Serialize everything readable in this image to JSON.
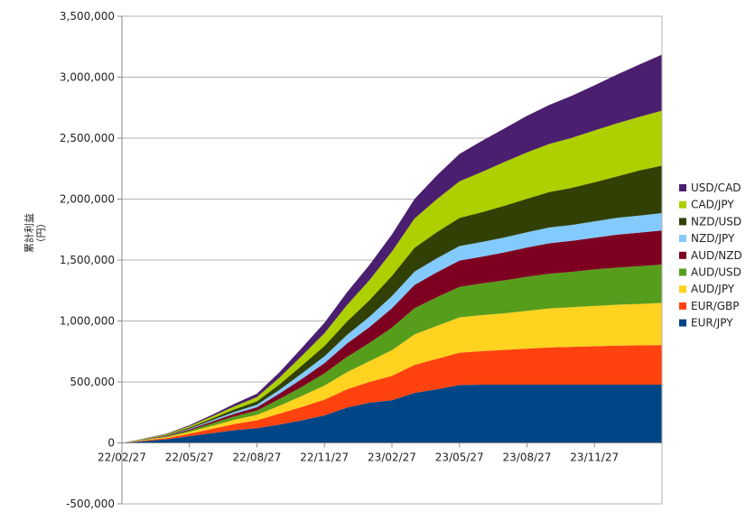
{
  "chart_data": {
    "type": "area",
    "stacked": true,
    "title": "",
    "xlabel": "",
    "ylabel": "累計利益\n（円）",
    "ylim": [
      -500000,
      3500000
    ],
    "yticks": [
      -500000,
      0,
      500000,
      1000000,
      1500000,
      2000000,
      2500000,
      3000000,
      3500000
    ],
    "ytick_labels": [
      "-500,000",
      "0",
      "500,000",
      "1,000,000",
      "1,500,000",
      "2,000,000",
      "2,500,000",
      "3,000,000",
      "3,500,000"
    ],
    "x": [
      "22/02/27",
      "22/03/27",
      "22/04/27",
      "22/05/27",
      "22/06/27",
      "22/07/27",
      "22/08/27",
      "22/09/27",
      "22/10/27",
      "22/11/27",
      "22/12/27",
      "23/01/27",
      "23/02/27",
      "23/03/27",
      "23/04/27",
      "23/05/27",
      "23/06/27",
      "23/07/27",
      "23/08/27",
      "23/09/27",
      "23/10/27",
      "23/11/27",
      "23/12/27",
      "24/01/27",
      "24/02/27"
    ],
    "xtick_labels": [
      "22/02/27",
      "22/05/27",
      "22/08/27",
      "22/11/27",
      "23/02/27",
      "23/05/27",
      "23/08/27",
      "23/11/27"
    ],
    "grid": true,
    "legend_position": "right",
    "series": [
      {
        "name": "EUR/JPY",
        "color": "#004586",
        "values": [
          0,
          15000,
          30000,
          55000,
          80000,
          105000,
          120000,
          150000,
          185000,
          225000,
          290000,
          330000,
          350000,
          410000,
          440000,
          475000,
          478000,
          478000,
          478000,
          478000,
          478000,
          478000,
          478000,
          478000,
          478000
        ]
      },
      {
        "name": "EUR/GBP",
        "color": "#ff420e",
        "values": [
          0,
          5000,
          10000,
          20000,
          35000,
          50000,
          65000,
          90000,
          110000,
          130000,
          150000,
          170000,
          200000,
          230000,
          250000,
          265000,
          275000,
          285000,
          295000,
          305000,
          310000,
          315000,
          320000,
          322000,
          325000
        ]
      },
      {
        "name": "AUD/JPY",
        "color": "#ffd320",
        "values": [
          0,
          4000,
          8000,
          15000,
          25000,
          35000,
          45000,
          65000,
          90000,
          115000,
          140000,
          170000,
          210000,
          250000,
          270000,
          290000,
          295000,
          300000,
          310000,
          320000,
          325000,
          330000,
          335000,
          340000,
          345000
        ]
      },
      {
        "name": "AUD/USD",
        "color": "#579d1c",
        "values": [
          0,
          3000,
          6000,
          12000,
          20000,
          28000,
          35000,
          55000,
          75000,
          100000,
          125000,
          150000,
          185000,
          215000,
          235000,
          250000,
          260000,
          270000,
          280000,
          285000,
          290000,
          300000,
          305000,
          310000,
          315000
        ]
      },
      {
        "name": "AUD/NZD",
        "color": "#7e0021",
        "values": [
          0,
          2000,
          5000,
          9000,
          15000,
          22000,
          28000,
          45000,
          65000,
          85000,
          110000,
          130000,
          160000,
          190000,
          205000,
          215000,
          220000,
          230000,
          240000,
          250000,
          255000,
          260000,
          270000,
          275000,
          280000
        ]
      },
      {
        "name": "NZD/JPY",
        "color": "#83caff",
        "values": [
          0,
          1000,
          3000,
          6000,
          10000,
          15000,
          20000,
          30000,
          45000,
          55000,
          70000,
          85000,
          100000,
          110000,
          115000,
          120000,
          120000,
          122000,
          125000,
          130000,
          130000,
          135000,
          138000,
          140000,
          142000
        ]
      },
      {
        "name": "NZD/USD",
        "color": "#314004",
        "values": [
          0,
          2000,
          5000,
          9000,
          14000,
          20000,
          28000,
          45000,
          65000,
          85000,
          110000,
          135000,
          165000,
          195000,
          215000,
          230000,
          245000,
          260000,
          275000,
          290000,
          305000,
          320000,
          340000,
          370000,
          390000
        ]
      },
      {
        "name": "CAD/JPY",
        "color": "#aecf00",
        "values": [
          0,
          3000,
          6000,
          11000,
          18000,
          25000,
          35000,
          55000,
          80000,
          105000,
          135000,
          165000,
          200000,
          240000,
          270000,
          300000,
          330000,
          360000,
          380000,
          395000,
          410000,
          425000,
          435000,
          440000,
          450000
        ]
      },
      {
        "name": "USD/CAD",
        "color": "#4b1f6f",
        "values": [
          0,
          2000,
          4000,
          8000,
          13000,
          20000,
          28000,
          45000,
          65000,
          85000,
          105000,
          125000,
          140000,
          160000,
          195000,
          225000,
          255000,
          275000,
          300000,
          320000,
          345000,
          370000,
          400000,
          430000,
          460000
        ]
      }
    ]
  }
}
